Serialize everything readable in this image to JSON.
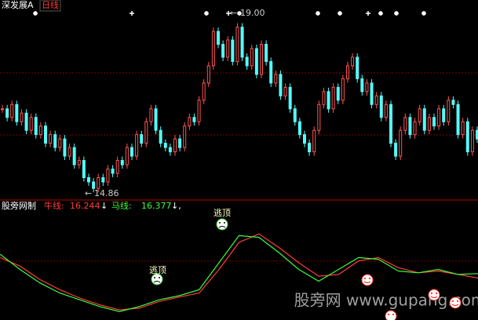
{
  "chart_data": [
    {
      "type": "candlestick",
      "title": "深发展A",
      "period": "日线",
      "up_color": "#ff5454",
      "down_color": "#54fcfc",
      "ylim": [
        14.68,
        19.33
      ],
      "values": [
        16.8,
        16.6,
        16.9,
        16.5,
        16.7,
        16.3,
        16.6,
        16.2,
        16.4,
        16.0,
        16.2,
        15.9,
        16.1,
        15.7,
        15.9,
        15.5,
        15.6,
        15.2,
        15.1,
        14.95,
        15.2,
        15.1,
        15.4,
        15.3,
        15.6,
        15.5,
        15.9,
        15.7,
        16.2,
        16.0,
        16.5,
        16.8,
        16.3,
        16.0,
        15.9,
        15.8,
        16.1,
        15.9,
        16.4,
        16.6,
        16.5,
        17.0,
        17.4,
        17.8,
        18.6,
        18.3,
        18.0,
        18.4,
        17.9,
        18.7,
        18.0,
        17.8,
        18.2,
        17.6,
        18.3,
        17.9,
        17.4,
        17.6,
        17.1,
        17.3,
        16.8,
        16.5,
        16.2,
        16.0,
        15.8,
        16.3,
        16.9,
        17.2,
        16.8,
        17.3,
        17.0,
        17.5,
        17.8,
        18.0,
        17.5,
        17.2,
        17.4,
        16.9,
        17.1,
        16.6,
        16.9,
        16.0,
        15.7,
        16.3,
        16.6,
        16.2,
        16.5,
        16.8,
        16.3,
        16.6,
        16.4,
        16.8,
        16.5,
        17.0,
        16.9,
        16.2,
        16.5,
        15.8,
        16.3,
        16.1
      ],
      "annotations": [
        {
          "arrow": "←",
          "text": "19.00"
        },
        {
          "arrow": "←",
          "text": "14.86"
        }
      ]
    },
    {
      "type": "line",
      "title": "股旁网制",
      "ylim": [
        15,
        18.44
      ],
      "series": [
        {
          "name": "牛线:",
          "color": "#ff3c3c",
          "arrow": "↓",
          "values": [
            16.85,
            16.6,
            16.2,
            15.9,
            15.65,
            15.45,
            15.3,
            15.35,
            15.55,
            15.68,
            15.8,
            16.5,
            17.3,
            17.55,
            17.15,
            16.7,
            16.3,
            16.35,
            16.75,
            16.85,
            16.55,
            16.4,
            16.45,
            16.35,
            16.244
          ]
        },
        {
          "name": "马线:",
          "color": "#3cfc3c",
          "arrow": "↓,",
          "values": [
            16.95,
            16.5,
            16.1,
            15.8,
            15.6,
            15.4,
            15.25,
            15.4,
            15.6,
            15.72,
            15.9,
            16.7,
            17.5,
            17.45,
            17.0,
            16.5,
            16.15,
            16.5,
            16.85,
            16.8,
            16.45,
            16.4,
            16.5,
            16.35,
            16.377
          ]
        }
      ],
      "signals": [
        "逃顶",
        "逃顶"
      ],
      "watermark": "股旁网 www.gupang.com"
    }
  ]
}
